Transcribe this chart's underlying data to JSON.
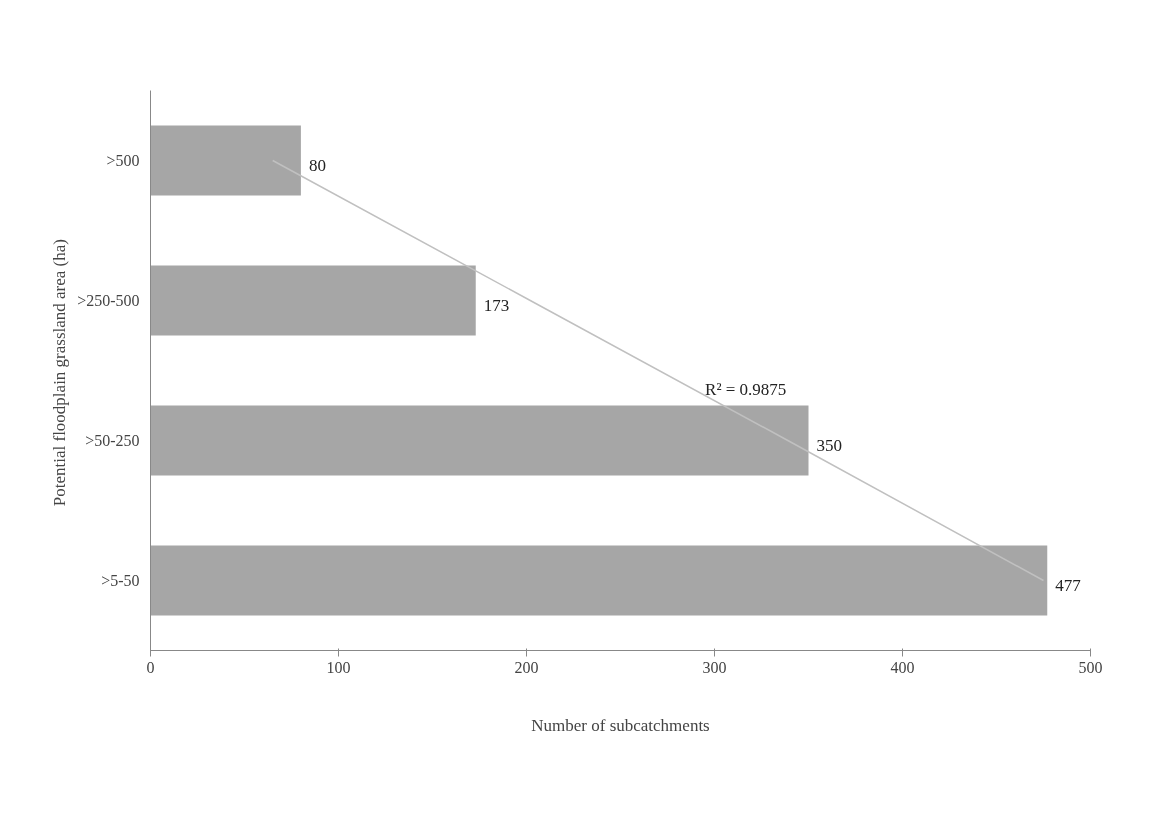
{
  "chart_data": {
    "type": "bar",
    "orientation": "horizontal",
    "xlabel": "Number of subcatchments",
    "ylabel": "Potential floodplain grassland area  (ha)",
    "categories": [
      ">500",
      ">250-500",
      ">50-250",
      ">5-50"
    ],
    "series": [
      {
        "color": "#a6a6a6",
        "values": [
          80,
          173,
          350,
          477
        ],
        "value_labels": [
          "80",
          "173",
          "350",
          "477"
        ]
      },
      {
        "type": "line",
        "color": "#c0c0c0",
        "values": [
          65,
          202,
          339,
          475
        ]
      }
    ],
    "xlim": [
      0,
      500
    ],
    "xticks": [
      0,
      100,
      200,
      300,
      400,
      500
    ],
    "grid": false,
    "annotations": [
      "R² = 0.9875"
    ]
  }
}
